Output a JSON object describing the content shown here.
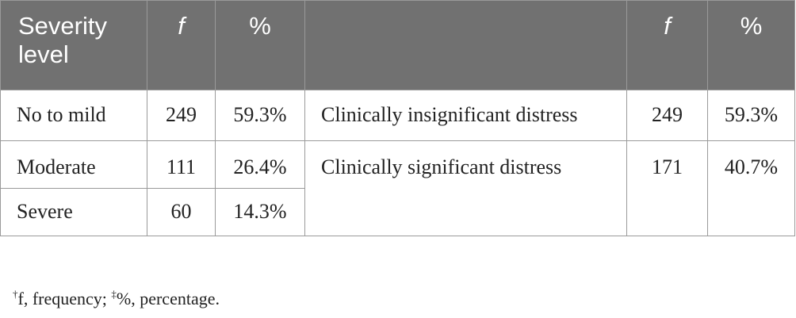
{
  "table": {
    "headers": {
      "severity": "Severity level",
      "f1": "f",
      "pct1": "%",
      "category": "",
      "f2": "f",
      "pct2": "%"
    },
    "severity_rows": [
      {
        "level": "No to mild",
        "f": "249",
        "pct": "59.3%"
      },
      {
        "level": "Moderate",
        "f": "111",
        "pct": "26.4%"
      },
      {
        "level": "Severe",
        "f": "60",
        "pct": "14.3%"
      }
    ],
    "distress_rows": [
      {
        "category": "Clinically insignificant distress",
        "f": "249",
        "pct": "59.3%"
      },
      {
        "category": "Clinically significant distress",
        "f": "171",
        "pct": "40.7%"
      }
    ]
  },
  "footnote": {
    "mark1": "†",
    "text1": "f, frequency; ",
    "mark2": "‡",
    "text2": "%, percentage."
  }
}
